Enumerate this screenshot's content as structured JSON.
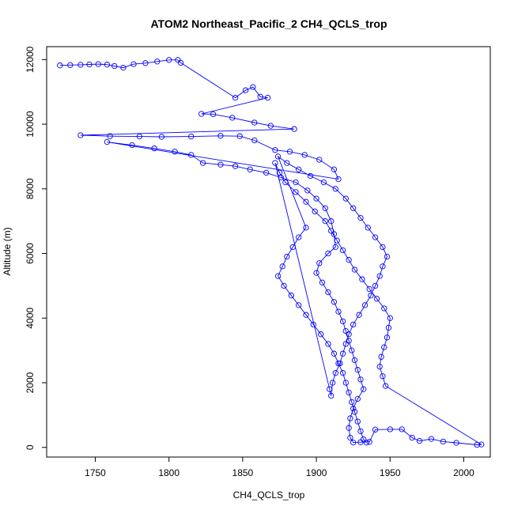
{
  "chart_data": {
    "type": "scatter",
    "title": "ATOM2 Northeast_Pacific_2 CH4_QCLS_trop",
    "xlabel": "CH4_QCLS_trop",
    "ylabel": "Altitude (m)",
    "xlim": [
      1717,
      2018
    ],
    "ylim": [
      -300,
      12400
    ],
    "x_ticks": [
      1750,
      1800,
      1850,
      1900,
      1950,
      2000
    ],
    "y_ticks": [
      0,
      2000,
      4000,
      6000,
      8000,
      10000,
      12000
    ],
    "grid": false,
    "legend": "none",
    "style": {
      "marker": "open-circle",
      "connected_by_line": true,
      "color": "#0000ff"
    },
    "series": [
      {
        "points": [
          [
            1726,
            11820
          ],
          [
            1733,
            11830
          ],
          [
            1740,
            11840
          ],
          [
            1746,
            11850
          ],
          [
            1752,
            11860
          ],
          [
            1758,
            11845
          ],
          [
            1763,
            11800
          ],
          [
            1769,
            11750
          ],
          [
            1776,
            11860
          ],
          [
            1784,
            11890
          ],
          [
            1792,
            11940
          ],
          [
            1800,
            11990
          ],
          [
            1806,
            11990
          ],
          [
            1808,
            11900
          ],
          [
            1845,
            10820
          ],
          [
            1852,
            11050
          ],
          [
            1857,
            11150
          ],
          [
            1862,
            10850
          ],
          [
            1867,
            10820
          ],
          [
            1822,
            10320
          ],
          [
            1830,
            10310
          ],
          [
            1843,
            10200
          ],
          [
            1858,
            10050
          ],
          [
            1869,
            9950
          ],
          [
            1885,
            9850
          ],
          [
            1740,
            9660
          ],
          [
            1760,
            9630
          ],
          [
            1780,
            9620
          ],
          [
            1795,
            9610
          ],
          [
            1815,
            9620
          ],
          [
            1835,
            9640
          ],
          [
            1848,
            9630
          ],
          [
            1858,
            9500
          ],
          [
            1872,
            9200
          ],
          [
            1882,
            9150
          ],
          [
            1892,
            9050
          ],
          [
            1902,
            8900
          ],
          [
            1912,
            8600
          ],
          [
            1915,
            8300
          ],
          [
            1758,
            9450
          ],
          [
            1775,
            9350
          ],
          [
            1790,
            9250
          ],
          [
            1804,
            9150
          ],
          [
            1815,
            9050
          ],
          [
            1823,
            8800
          ],
          [
            1835,
            8750
          ],
          [
            1845,
            8700
          ],
          [
            1855,
            8600
          ],
          [
            1866,
            8500
          ],
          [
            1876,
            8350
          ],
          [
            1886,
            8200
          ],
          [
            1894,
            7950
          ],
          [
            1900,
            7700
          ],
          [
            1906,
            7400
          ],
          [
            1910,
            7000
          ],
          [
            1912,
            6600
          ],
          [
            1913,
            6200
          ],
          [
            1908,
            6000
          ],
          [
            1902,
            5700
          ],
          [
            1900,
            5400
          ],
          [
            1904,
            5100
          ],
          [
            1908,
            4800
          ],
          [
            1912,
            4500
          ],
          [
            1915,
            4200
          ],
          [
            1918,
            3900
          ],
          [
            1920,
            3600
          ],
          [
            1922,
            3300
          ],
          [
            1924,
            3000
          ],
          [
            1926,
            2700
          ],
          [
            1928,
            2400
          ],
          [
            1930,
            2100
          ],
          [
            1932,
            1800
          ],
          [
            1928,
            1500
          ],
          [
            1925,
            1200
          ],
          [
            1923,
            900
          ],
          [
            1922,
            600
          ],
          [
            1923,
            300
          ],
          [
            1925,
            150
          ],
          [
            1930,
            160
          ],
          [
            1936,
            170
          ],
          [
            1940,
            550
          ],
          [
            1950,
            560
          ],
          [
            1958,
            560
          ],
          [
            1965,
            300
          ],
          [
            1970,
            200
          ],
          [
            1978,
            260
          ],
          [
            1986,
            180
          ],
          [
            1995,
            140
          ],
          [
            2009,
            80
          ],
          [
            2012,
            90
          ],
          [
            1947,
            1900
          ],
          [
            1945,
            2200
          ],
          [
            1943,
            2500
          ],
          [
            1944,
            2800
          ],
          [
            1946,
            3100
          ],
          [
            1948,
            3400
          ],
          [
            1949,
            3700
          ],
          [
            1950,
            4000
          ],
          [
            1946,
            4300
          ],
          [
            1941,
            4600
          ],
          [
            1936,
            4900
          ],
          [
            1931,
            5200
          ],
          [
            1926,
            5500
          ],
          [
            1922,
            5800
          ],
          [
            1918,
            6100
          ],
          [
            1914,
            6400
          ],
          [
            1910,
            6700
          ],
          [
            1906,
            7000
          ],
          [
            1899,
            7300
          ],
          [
            1893,
            7600
          ],
          [
            1886,
            7900
          ],
          [
            1879,
            8200
          ],
          [
            1875,
            8500
          ],
          [
            1872,
            8800
          ],
          [
            1909,
            1800
          ],
          [
            1910,
            1600
          ],
          [
            1911,
            2000
          ],
          [
            1913,
            2300
          ],
          [
            1916,
            2600
          ],
          [
            1918,
            2900
          ],
          [
            1920,
            3200
          ],
          [
            1922,
            3500
          ],
          [
            1925,
            3800
          ],
          [
            1929,
            4100
          ],
          [
            1933,
            4400
          ],
          [
            1937,
            4700
          ],
          [
            1940,
            5000
          ],
          [
            1943,
            5300
          ],
          [
            1945,
            5600
          ],
          [
            1948,
            5900
          ],
          [
            1945,
            6200
          ],
          [
            1940,
            6500
          ],
          [
            1935,
            6800
          ],
          [
            1930,
            7100
          ],
          [
            1925,
            7400
          ],
          [
            1920,
            7700
          ],
          [
            1913,
            8000
          ],
          [
            1905,
            8200
          ],
          [
            1896,
            8400
          ],
          [
            1888,
            8600
          ],
          [
            1880,
            8800
          ],
          [
            1874,
            9000
          ],
          [
            1893,
            6800
          ],
          [
            1888,
            6500
          ],
          [
            1884,
            6200
          ],
          [
            1880,
            5900
          ],
          [
            1877,
            5600
          ],
          [
            1874,
            5300
          ],
          [
            1878,
            5000
          ],
          [
            1883,
            4700
          ],
          [
            1888,
            4400
          ],
          [
            1893,
            4100
          ],
          [
            1898,
            3800
          ],
          [
            1903,
            3500
          ],
          [
            1908,
            3200
          ],
          [
            1912,
            2900
          ],
          [
            1915,
            2600
          ],
          [
            1918,
            2300
          ],
          [
            1920,
            2000
          ],
          [
            1922,
            1700
          ],
          [
            1924,
            1400
          ],
          [
            1926,
            1100
          ],
          [
            1928,
            800
          ],
          [
            1930,
            500
          ],
          [
            1932,
            250
          ],
          [
            1934,
            150
          ]
        ]
      }
    ]
  }
}
